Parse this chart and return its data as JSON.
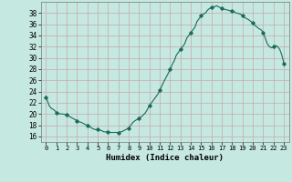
{
  "title": "",
  "xlabel": "Humidex (Indice chaleur)",
  "xlim": [
    -0.5,
    23.5
  ],
  "ylim": [
    15,
    40
  ],
  "yticks": [
    16,
    18,
    20,
    22,
    24,
    26,
    28,
    30,
    32,
    34,
    36,
    38
  ],
  "xticks": [
    0,
    1,
    2,
    3,
    4,
    5,
    6,
    7,
    8,
    9,
    10,
    11,
    12,
    13,
    14,
    15,
    16,
    17,
    18,
    19,
    20,
    21,
    22,
    23
  ],
  "background_color": "#c5e8e0",
  "grid_color": "#c8a8a8",
  "line_color": "#1a6b5a",
  "marker_color": "#1a6b5a",
  "data_x": [
    0,
    0.1,
    0.2,
    0.3,
    0.5,
    0.7,
    0.9,
    1.0,
    1.2,
    1.4,
    1.6,
    1.8,
    2.0,
    2.2,
    2.4,
    2.6,
    2.8,
    3.0,
    3.2,
    3.4,
    3.5,
    3.6,
    3.8,
    4.0,
    4.2,
    4.4,
    4.5,
    4.6,
    4.8,
    5.0,
    5.2,
    5.4,
    5.5,
    5.6,
    5.8,
    6.0,
    6.2,
    6.4,
    6.6,
    6.8,
    7.0,
    7.2,
    7.4,
    7.5,
    7.6,
    7.8,
    8.0,
    8.2,
    8.4,
    8.6,
    8.8,
    9.0,
    9.2,
    9.4,
    9.6,
    9.8,
    10.0,
    10.2,
    10.4,
    10.6,
    10.8,
    11.0,
    11.2,
    11.4,
    11.6,
    11.8,
    12.0,
    12.2,
    12.4,
    12.5,
    12.6,
    12.8,
    13.0,
    13.2,
    13.4,
    13.5,
    13.6,
    13.8,
    14.0,
    14.2,
    14.4,
    14.5,
    14.6,
    14.8,
    15.0,
    15.2,
    15.4,
    15.5,
    15.6,
    15.8,
    16.0,
    16.2,
    16.4,
    16.5,
    16.6,
    16.8,
    17.0,
    17.2,
    17.4,
    17.6,
    17.8,
    18.0,
    18.2,
    18.4,
    18.6,
    18.8,
    19.0,
    19.2,
    19.4,
    19.6,
    19.8,
    20.0,
    20.2,
    20.4,
    20.6,
    20.8,
    21.0,
    21.2,
    21.4,
    21.6,
    21.8,
    22.0,
    22.2,
    22.4,
    22.6,
    22.8,
    23.0
  ],
  "data_y": [
    23.0,
    22.5,
    22.0,
    21.5,
    21.0,
    20.8,
    20.5,
    20.2,
    20.1,
    20.0,
    20.0,
    19.9,
    19.8,
    19.6,
    19.4,
    19.2,
    19.0,
    18.8,
    18.6,
    18.5,
    18.4,
    18.3,
    18.1,
    18.0,
    17.8,
    17.5,
    17.4,
    17.3,
    17.2,
    17.2,
    17.1,
    17.0,
    16.9,
    16.8,
    16.8,
    16.8,
    16.7,
    16.7,
    16.7,
    16.7,
    16.7,
    16.8,
    16.9,
    17.0,
    17.1,
    17.3,
    17.5,
    18.0,
    18.5,
    18.8,
    19.0,
    19.2,
    19.5,
    19.8,
    20.2,
    20.8,
    21.5,
    22.0,
    22.5,
    23.0,
    23.5,
    24.2,
    25.0,
    25.8,
    26.5,
    27.2,
    28.0,
    28.8,
    29.5,
    30.0,
    30.5,
    31.0,
    31.5,
    32.0,
    32.5,
    33.0,
    33.5,
    34.0,
    34.5,
    35.0,
    35.5,
    36.0,
    36.5,
    37.0,
    37.5,
    37.8,
    38.0,
    38.2,
    38.5,
    38.8,
    39.0,
    39.1,
    39.2,
    39.3,
    39.2,
    39.0,
    38.8,
    38.7,
    38.6,
    38.5,
    38.4,
    38.3,
    38.2,
    38.0,
    37.9,
    37.8,
    37.5,
    37.2,
    37.0,
    36.8,
    36.5,
    36.2,
    35.8,
    35.5,
    35.2,
    35.0,
    34.5,
    33.5,
    32.5,
    32.0,
    31.8,
    32.0,
    32.2,
    32.0,
    31.5,
    30.5,
    29.0
  ],
  "marker_x": [
    0,
    1,
    2,
    3,
    4,
    5,
    6,
    7,
    8,
    9,
    10,
    11,
    12,
    13,
    14,
    15,
    16,
    17,
    18,
    19,
    20,
    21,
    22,
    23
  ],
  "marker_y": [
    23.0,
    20.2,
    19.8,
    18.8,
    18.0,
    17.2,
    16.8,
    16.7,
    17.5,
    19.2,
    21.5,
    24.2,
    28.0,
    31.5,
    34.5,
    37.5,
    39.0,
    38.8,
    38.3,
    37.5,
    36.2,
    34.5,
    32.0,
    29.0
  ]
}
